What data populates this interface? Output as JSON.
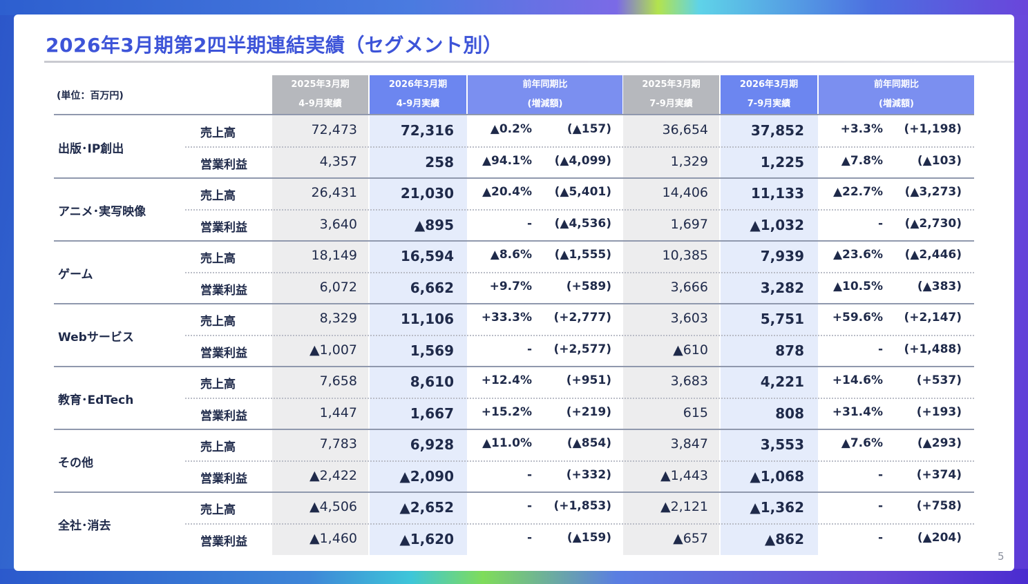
{
  "title": "2026年3月期第2四半期連結実績（セグメント別）",
  "unit": "(単位：百万円)",
  "page_number": "5",
  "headers": [
    {
      "line1": "2025年3月期",
      "line2": "4-9月実績"
    },
    {
      "line1": "2026年3月期",
      "line2": "4-9月実績"
    },
    {
      "line1": "前年同期比",
      "line2": "(増減額)"
    },
    {
      "line1": "2025年3月期",
      "line2": "7-9月実績"
    },
    {
      "line1": "2026年3月期",
      "line2": "7-9月実績"
    },
    {
      "line1": "前年同期比",
      "line2": "(増減額)"
    }
  ],
  "segments": [
    {
      "name": "出版･IP創出",
      "rows": [
        {
          "metric": "売上高",
          "h1_prev": "72,473",
          "h1_curr": "72,316",
          "h1_pct": "▲0.2%",
          "h1_diff": "(▲157)",
          "q_prev": "36,654",
          "q_curr": "37,852",
          "q_pct": "+3.3%",
          "q_diff": "(+1,198)"
        },
        {
          "metric": "営業利益",
          "h1_prev": "4,357",
          "h1_curr": "258",
          "h1_pct": "▲94.1%",
          "h1_diff": "(▲4,099)",
          "q_prev": "1,329",
          "q_curr": "1,225",
          "q_pct": "▲7.8%",
          "q_diff": "(▲103)"
        }
      ]
    },
    {
      "name": "アニメ･実写映像",
      "rows": [
        {
          "metric": "売上高",
          "h1_prev": "26,431",
          "h1_curr": "21,030",
          "h1_pct": "▲20.4%",
          "h1_diff": "(▲5,401)",
          "q_prev": "14,406",
          "q_curr": "11,133",
          "q_pct": "▲22.7%",
          "q_diff": "(▲3,273)"
        },
        {
          "metric": "営業利益",
          "h1_prev": "3,640",
          "h1_curr": "▲895",
          "h1_pct": "-",
          "h1_diff": "(▲4,536)",
          "q_prev": "1,697",
          "q_curr": "▲1,032",
          "q_pct": "-",
          "q_diff": "(▲2,730)"
        }
      ]
    },
    {
      "name": "ゲーム",
      "rows": [
        {
          "metric": "売上高",
          "h1_prev": "18,149",
          "h1_curr": "16,594",
          "h1_pct": "▲8.6%",
          "h1_diff": "(▲1,555)",
          "q_prev": "10,385",
          "q_curr": "7,939",
          "q_pct": "▲23.6%",
          "q_diff": "(▲2,446)"
        },
        {
          "metric": "営業利益",
          "h1_prev": "6,072",
          "h1_curr": "6,662",
          "h1_pct": "+9.7%",
          "h1_diff": "(+589)",
          "q_prev": "3,666",
          "q_curr": "3,282",
          "q_pct": "▲10.5%",
          "q_diff": "(▲383)"
        }
      ]
    },
    {
      "name": "Webサービス",
      "rows": [
        {
          "metric": "売上高",
          "h1_prev": "8,329",
          "h1_curr": "11,106",
          "h1_pct": "+33.3%",
          "h1_diff": "(+2,777)",
          "q_prev": "3,603",
          "q_curr": "5,751",
          "q_pct": "+59.6%",
          "q_diff": "(+2,147)"
        },
        {
          "metric": "営業利益",
          "h1_prev": "▲1,007",
          "h1_curr": "1,569",
          "h1_pct": "-",
          "h1_diff": "(+2,577)",
          "q_prev": "▲610",
          "q_curr": "878",
          "q_pct": "-",
          "q_diff": "(+1,488)"
        }
      ]
    },
    {
      "name": "教育･EdTech",
      "rows": [
        {
          "metric": "売上高",
          "h1_prev": "7,658",
          "h1_curr": "8,610",
          "h1_pct": "+12.4%",
          "h1_diff": "(+951)",
          "q_prev": "3,683",
          "q_curr": "4,221",
          "q_pct": "+14.6%",
          "q_diff": "(+537)"
        },
        {
          "metric": "営業利益",
          "h1_prev": "1,447",
          "h1_curr": "1,667",
          "h1_pct": "+15.2%",
          "h1_diff": "(+219)",
          "q_prev": "615",
          "q_curr": "808",
          "q_pct": "+31.4%",
          "q_diff": "(+193)"
        }
      ]
    },
    {
      "name": "その他",
      "rows": [
        {
          "metric": "売上高",
          "h1_prev": "7,783",
          "h1_curr": "6,928",
          "h1_pct": "▲11.0%",
          "h1_diff": "(▲854)",
          "q_prev": "3,847",
          "q_curr": "3,553",
          "q_pct": "▲7.6%",
          "q_diff": "(▲293)"
        },
        {
          "metric": "営業利益",
          "h1_prev": "▲2,422",
          "h1_curr": "▲2,090",
          "h1_pct": "-",
          "h1_diff": "(+332)",
          "q_prev": "▲1,443",
          "q_curr": "▲1,068",
          "q_pct": "-",
          "q_diff": "(+374)"
        }
      ]
    },
    {
      "name": "全社･消去",
      "rows": [
        {
          "metric": "売上高",
          "h1_prev": "▲4,506",
          "h1_curr": "▲2,652",
          "h1_pct": "-",
          "h1_diff": "(+1,853)",
          "q_prev": "▲2,121",
          "q_curr": "▲1,362",
          "q_pct": "-",
          "q_diff": "(+758)"
        },
        {
          "metric": "営業利益",
          "h1_prev": "▲1,460",
          "h1_curr": "▲1,620",
          "h1_pct": "-",
          "h1_diff": "(▲159)",
          "q_prev": "▲657",
          "q_curr": "▲862",
          "q_pct": "-",
          "q_diff": "(▲204)"
        }
      ]
    }
  ]
}
